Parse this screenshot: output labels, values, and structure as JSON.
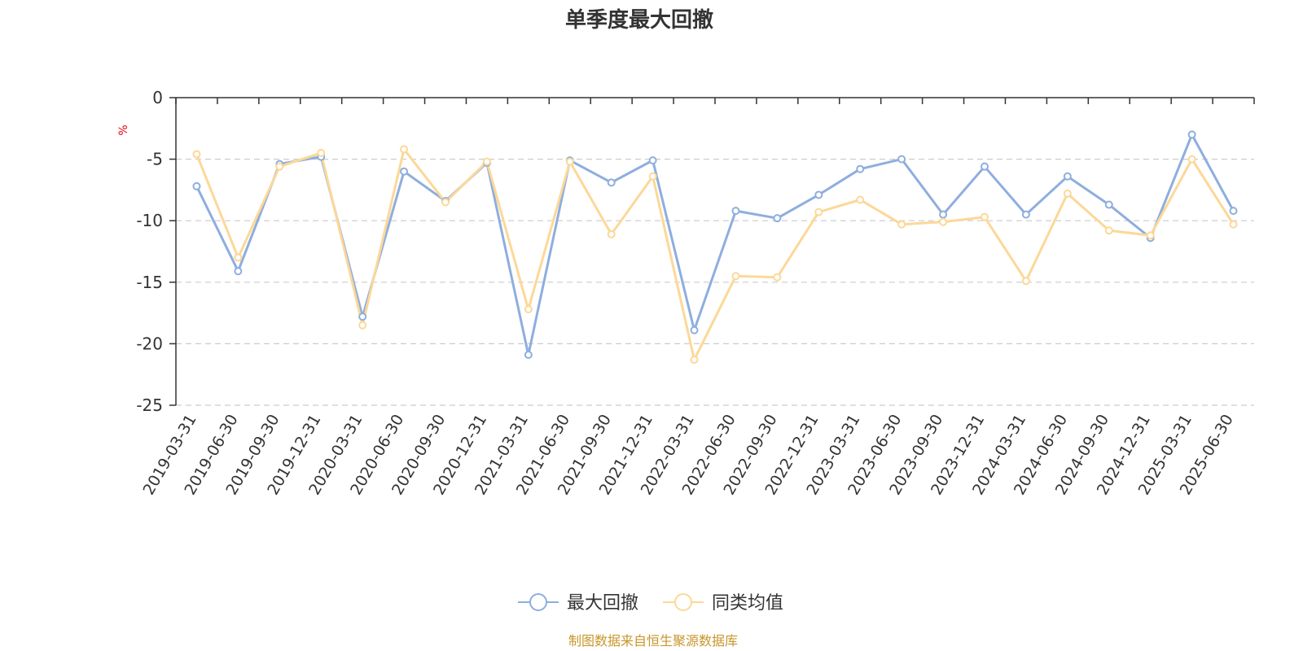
{
  "title": "单季度最大回撤",
  "unit_label": "%",
  "source_text": "制图数据来自恒生聚源数据库",
  "colors": {
    "series_1": "#8eaede",
    "series_2": "#fcd898",
    "axis": "#333333",
    "grid": "#cccccc",
    "unit": "#e60012",
    "source": "#c8962a"
  },
  "chart_data": {
    "type": "line",
    "title": "单季度最大回撤",
    "ylabel": "%",
    "xlabel": "",
    "ylim": [
      -25,
      0
    ],
    "yticks": [
      0,
      -5,
      -10,
      -15,
      -20,
      -25
    ],
    "grid": true,
    "legend_position": "bottom-center",
    "categories": [
      "2019-03-31",
      "2019-06-30",
      "2019-09-30",
      "2019-12-31",
      "2020-03-31",
      "2020-06-30",
      "2020-09-30",
      "2020-12-31",
      "2021-03-31",
      "2021-06-30",
      "2021-09-30",
      "2021-12-31",
      "2022-03-31",
      "2022-06-30",
      "2022-09-30",
      "2022-12-31",
      "2023-03-31",
      "2023-06-30",
      "2023-09-30",
      "2023-12-31",
      "2024-03-31",
      "2024-06-30",
      "2024-09-30",
      "2024-12-31",
      "2025-03-31",
      "2025-06-30"
    ],
    "series": [
      {
        "name": "最大回撤",
        "values": [
          -7.2,
          -14.1,
          -5.4,
          -4.8,
          -17.8,
          -6.0,
          -8.4,
          -5.3,
          -20.9,
          -5.1,
          -6.9,
          -5.1,
          -18.9,
          -9.2,
          -9.8,
          -7.9,
          -5.8,
          -5.0,
          -9.5,
          -5.6,
          -9.5,
          -6.4,
          -8.7,
          -11.4,
          -3.0,
          -9.2
        ]
      },
      {
        "name": "同类均值",
        "values": [
          -4.6,
          -13.0,
          -5.6,
          -4.5,
          -18.5,
          -4.2,
          -8.5,
          -5.2,
          -17.2,
          -5.2,
          -11.1,
          -6.4,
          -21.3,
          -14.5,
          -14.6,
          -9.3,
          -8.3,
          -10.3,
          -10.1,
          -9.7,
          -14.9,
          -7.8,
          -10.8,
          -11.2,
          -5.0,
          -10.3
        ]
      }
    ]
  }
}
